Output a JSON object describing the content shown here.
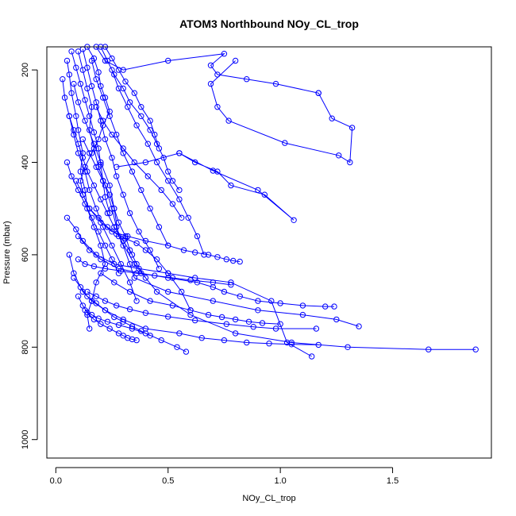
{
  "chart_data": {
    "type": "line",
    "title": "ATOM3 Northbound NOy_CL_trop",
    "xlabel": "NOy_CL_trop",
    "ylabel": "Pressure (mbar)",
    "xlim": [
      -0.04,
      1.94
    ],
    "ylim": [
      1040,
      150
    ],
    "y_reversed": true,
    "x_ticks": [
      0.0,
      0.5,
      1.0,
      1.5
    ],
    "x_tick_labels": [
      "0.0",
      "0.5",
      "1.0",
      "1.5"
    ],
    "y_ticks": [
      200,
      400,
      600,
      800,
      1000
    ],
    "y_tick_labels": [
      "200",
      "400",
      "600",
      "800",
      "1000"
    ],
    "grid": false,
    "legend": "none",
    "series_color": "#0000ff",
    "marker": "open-circle",
    "series": [
      {
        "x": [
          0.05,
          0.06,
          0.07,
          0.09,
          0.1,
          0.12,
          0.11,
          0.13,
          0.14,
          0.17,
          0.2,
          0.22,
          0.18,
          0.16,
          0.14,
          0.15
        ],
        "y": [
          180,
          210,
          250,
          300,
          330,
          380,
          420,
          460,
          500,
          540,
          580,
          620,
          660,
          700,
          730,
          760
        ]
      },
      {
        "x": [
          0.1,
          0.12,
          0.14,
          0.16,
          0.15,
          0.17,
          0.19,
          0.22,
          0.25,
          0.27,
          0.3,
          0.33,
          0.35,
          0.5,
          0.7,
          0.9,
          1.1,
          1.25,
          1.35
        ],
        "y": [
          160,
          200,
          240,
          280,
          330,
          370,
          410,
          450,
          500,
          540,
          580,
          620,
          650,
          680,
          700,
          720,
          730,
          740,
          755
        ]
      },
      {
        "x": [
          0.08,
          0.1,
          0.13,
          0.17,
          0.2,
          0.24,
          0.26,
          0.28,
          0.35,
          0.45,
          0.6,
          0.8,
          1.05,
          1.3,
          1.66,
          1.87
        ],
        "y": [
          230,
          270,
          310,
          360,
          400,
          450,
          500,
          560,
          620,
          680,
          730,
          770,
          790,
          800,
          805,
          805
        ]
      },
      {
        "x": [
          0.18,
          0.22,
          0.3,
          0.5,
          0.75,
          0.69,
          0.72,
          0.85,
          0.98,
          1.17
        ],
        "y": [
          150,
          180,
          200,
          180,
          165,
          190,
          210,
          220,
          230,
          250
        ]
      },
      {
        "x": [
          1.17,
          1.23,
          1.32,
          1.31,
          1.26,
          1.02,
          0.77,
          0.72,
          0.69,
          0.8
        ],
        "y": [
          250,
          305,
          325,
          400,
          385,
          358,
          310,
          280,
          230,
          180
        ]
      },
      {
        "x": [
          0.27,
          0.4,
          0.55,
          0.7,
          0.9,
          1.06,
          0.93,
          0.78,
          0.72,
          0.62,
          0.55
        ],
        "y": [
          410,
          400,
          380,
          418,
          460,
          525,
          470,
          450,
          420,
          400,
          380
        ]
      },
      {
        "x": [
          0.06,
          0.08,
          0.12,
          0.16,
          0.22,
          0.3,
          0.4,
          0.55,
          0.65,
          0.75,
          0.85,
          0.95,
          1.05,
          1.17
        ],
        "y": [
          600,
          640,
          680,
          700,
          720,
          740,
          760,
          770,
          780,
          785,
          790,
          792,
          794,
          795
        ]
      },
      {
        "x": [
          0.1,
          0.15,
          0.2,
          0.28,
          0.38,
          0.5,
          0.63,
          0.7,
          0.75,
          0.82,
          0.9,
          1.0,
          1.1,
          1.2,
          1.24
        ],
        "y": [
          560,
          590,
          610,
          630,
          640,
          650,
          660,
          670,
          680,
          690,
          700,
          705,
          710,
          712,
          712
        ]
      },
      {
        "x": [
          0.05,
          0.09,
          0.12,
          0.18,
          0.26,
          0.37,
          0.5,
          0.62,
          0.78,
          0.96,
          1.03,
          1.14
        ],
        "y": [
          520,
          545,
          570,
          600,
          620,
          630,
          640,
          650,
          660,
          700,
          790,
          820
        ]
      },
      {
        "x": [
          0.14,
          0.17,
          0.19,
          0.2,
          0.22,
          0.24,
          0.21,
          0.19,
          0.16,
          0.13,
          0.11,
          0.12
        ],
        "y": [
          150,
          175,
          205,
          235,
          260,
          290,
          320,
          350,
          380,
          410,
          440,
          470
        ]
      },
      {
        "x": [
          0.2,
          0.23,
          0.26,
          0.3,
          0.33,
          0.38,
          0.42,
          0.45,
          0.48,
          0.5,
          0.52,
          0.55
        ],
        "y": [
          150,
          180,
          210,
          240,
          270,
          300,
          330,
          360,
          390,
          420,
          440,
          460
        ]
      },
      {
        "x": [
          0.03,
          0.04,
          0.06,
          0.08,
          0.1,
          0.13,
          0.15,
          0.18,
          0.21,
          0.25,
          0.29,
          0.33,
          0.36
        ],
        "y": [
          220,
          260,
          300,
          340,
          380,
          420,
          460,
          500,
          540,
          580,
          620,
          660,
          700
        ]
      },
      {
        "x": [
          0.15,
          0.2,
          0.25,
          0.32,
          0.4,
          0.5,
          0.57,
          0.62,
          0.68,
          0.72,
          0.76,
          0.79,
          0.82
        ],
        "y": [
          500,
          530,
          550,
          560,
          570,
          580,
          590,
          595,
          600,
          605,
          610,
          613,
          615
        ]
      },
      {
        "x": [
          0.2,
          0.26,
          0.33,
          0.42,
          0.52,
          0.6,
          0.68,
          0.74,
          0.8,
          0.86,
          0.92,
          1.0
        ],
        "y": [
          640,
          660,
          680,
          700,
          710,
          720,
          730,
          735,
          740,
          745,
          748,
          750
        ]
      },
      {
        "x": [
          0.1,
          0.12,
          0.14,
          0.17,
          0.2,
          0.24,
          0.28,
          0.3,
          0.32,
          0.34,
          0.36
        ],
        "y": [
          690,
          710,
          725,
          740,
          750,
          760,
          770,
          775,
          780,
          783,
          785
        ]
      },
      {
        "x": [
          0.12,
          0.14,
          0.16,
          0.18,
          0.2,
          0.22,
          0.25,
          0.27,
          0.3,
          0.33,
          0.37,
          0.42,
          0.46
        ],
        "y": [
          155,
          195,
          235,
          270,
          310,
          350,
          390,
          430,
          470,
          510,
          550,
          590,
          630
        ]
      },
      {
        "x": [
          0.07,
          0.09,
          0.11,
          0.13,
          0.15,
          0.17,
          0.19,
          0.2,
          0.21,
          0.22,
          0.24
        ],
        "y": [
          160,
          195,
          230,
          265,
          300,
          335,
          370,
          405,
          440,
          475,
          510
        ]
      },
      {
        "x": [
          0.25,
          0.28,
          0.32,
          0.36,
          0.41,
          0.45,
          0.5,
          0.55,
          0.59,
          0.63,
          0.66
        ],
        "y": [
          200,
          240,
          280,
          320,
          360,
          400,
          440,
          480,
          520,
          560,
          600
        ]
      },
      {
        "x": [
          0.09,
          0.12,
          0.15,
          0.19,
          0.23,
          0.27,
          0.31,
          0.36,
          0.4,
          0.45,
          0.5,
          0.56,
          0.6
        ],
        "y": [
          440,
          470,
          500,
          520,
          540,
          555,
          565,
          575,
          590,
          610,
          640,
          680,
          720
        ]
      },
      {
        "x": [
          0.13,
          0.16,
          0.19,
          0.23,
          0.28,
          0.34,
          0.4,
          0.47,
          0.54,
          0.58
        ],
        "y": [
          720,
          730,
          738,
          745,
          752,
          760,
          770,
          785,
          800,
          810
        ]
      },
      {
        "x": [
          0.06,
          0.08,
          0.1,
          0.12,
          0.14,
          0.17,
          0.2,
          0.23,
          0.26,
          0.3,
          0.34
        ],
        "y": [
          300,
          330,
          360,
          390,
          420,
          450,
          480,
          510,
          540,
          570,
          600
        ]
      },
      {
        "x": [
          0.16,
          0.18,
          0.21,
          0.24,
          0.27,
          0.3,
          0.34,
          0.38,
          0.42,
          0.46,
          0.5
        ],
        "y": [
          180,
          220,
          260,
          300,
          340,
          380,
          420,
          460,
          500,
          540,
          580
        ]
      },
      {
        "x": [
          0.1,
          0.13,
          0.17,
          0.22,
          0.29,
          0.36,
          0.44,
          0.52,
          0.6,
          0.7,
          0.78
        ],
        "y": [
          610,
          620,
          625,
          630,
          635,
          640,
          645,
          650,
          655,
          660,
          665
        ]
      },
      {
        "x": [
          0.08,
          0.11,
          0.14,
          0.18,
          0.22,
          0.26,
          0.3,
          0.34,
          0.38,
          0.42
        ],
        "y": [
          650,
          670,
          690,
          705,
          720,
          735,
          745,
          755,
          765,
          775
        ]
      },
      {
        "x": [
          0.22,
          0.25,
          0.28,
          0.31,
          0.35,
          0.38,
          0.42,
          0.44,
          0.46
        ],
        "y": [
          150,
          175,
          200,
          225,
          250,
          280,
          310,
          340,
          370
        ]
      },
      {
        "x": [
          0.12,
          0.15,
          0.18,
          0.21,
          0.24,
          0.26,
          0.28,
          0.31,
          0.33,
          0.36,
          0.4
        ],
        "y": [
          350,
          380,
          410,
          440,
          470,
          500,
          530,
          560,
          590,
          620,
          650
        ]
      },
      {
        "x": [
          0.05,
          0.07,
          0.1,
          0.13,
          0.16,
          0.19,
          0.22,
          0.25,
          0.28
        ],
        "y": [
          400,
          430,
          460,
          490,
          520,
          550,
          580,
          610,
          640
        ]
      },
      {
        "x": [
          0.18,
          0.21,
          0.25,
          0.3,
          0.35,
          0.41,
          0.47,
          0.52,
          0.56
        ],
        "y": [
          280,
          310,
          340,
          370,
          400,
          430,
          460,
          490,
          520
        ]
      },
      {
        "x": [
          0.14,
          0.18,
          0.22,
          0.27,
          0.33,
          0.4,
          0.5,
          0.62,
          0.76,
          0.88,
          0.98,
          1.16
        ],
        "y": [
          680,
          690,
          700,
          710,
          718,
          726,
          734,
          742,
          750,
          756,
          760,
          760
        ]
      }
    ]
  }
}
